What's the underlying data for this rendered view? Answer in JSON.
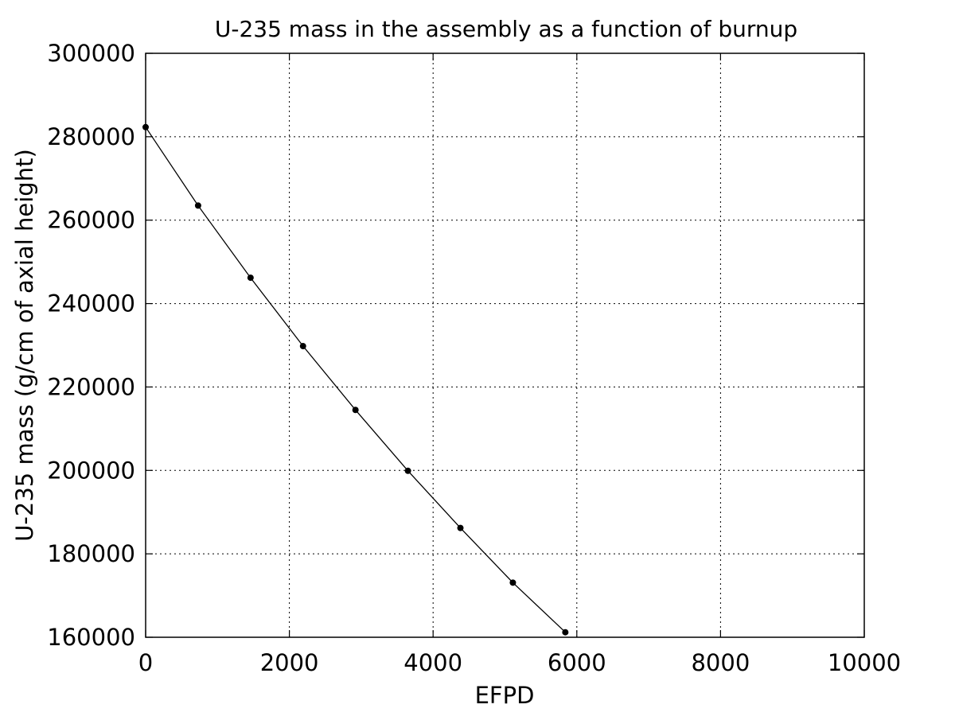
{
  "chart_data": {
    "type": "line",
    "title": "U-235 mass in the assembly as a function of burnup",
    "xlabel": "EFPD",
    "ylabel": "U-235 mass (g/cm of axial height)",
    "xlim": [
      0,
      10000
    ],
    "ylim": [
      160000,
      300000
    ],
    "xticks": [
      0,
      2000,
      4000,
      6000,
      8000,
      10000
    ],
    "yticks": [
      160000,
      180000,
      200000,
      220000,
      240000,
      260000,
      280000,
      300000
    ],
    "xtick_labels": [
      "0",
      "2000",
      "4000",
      "6000",
      "8000",
      "10000"
    ],
    "ytick_labels": [
      "160000",
      "180000",
      "200000",
      "220000",
      "240000",
      "260000",
      "280000",
      "300000"
    ],
    "grid": true,
    "series": [
      {
        "x": [
          0,
          730,
          1460,
          2190,
          2920,
          3650,
          4380,
          5110,
          5840
        ],
        "y": [
          282300,
          263500,
          246200,
          229800,
          214500,
          199900,
          186200,
          173100,
          161200
        ],
        "color": "#000000",
        "marker": "dot"
      }
    ]
  }
}
